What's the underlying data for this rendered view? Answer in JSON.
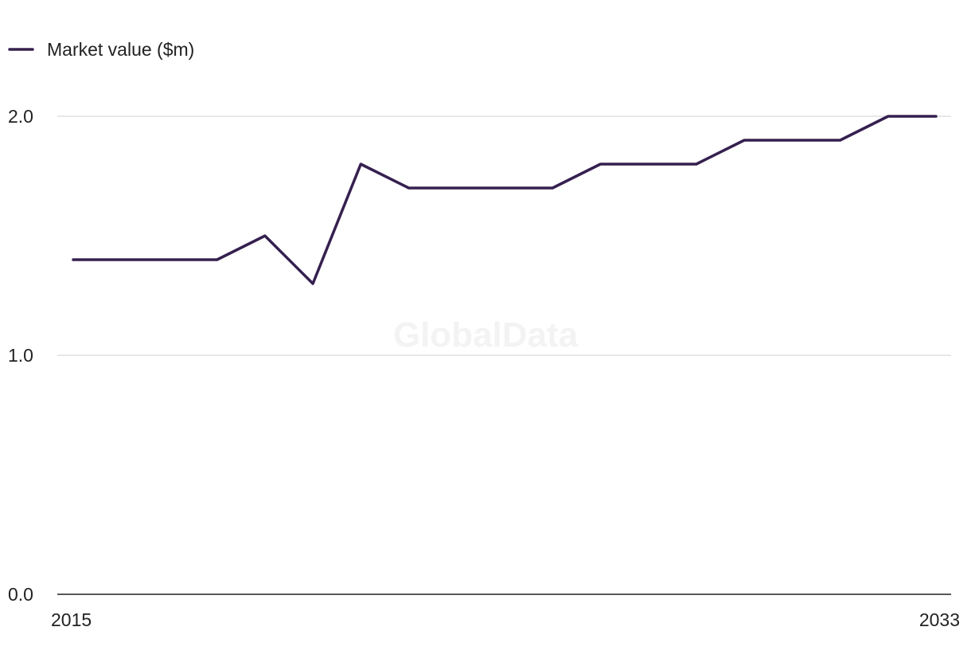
{
  "watermark": "GlobalData",
  "colors": {
    "series": "#35204f",
    "grid": "#d9d9d9",
    "axis": "#222222"
  },
  "chart_data": {
    "type": "line",
    "legend": {
      "position": "top-left"
    },
    "grid": true,
    "x": [
      2015,
      2016,
      2017,
      2018,
      2019,
      2020,
      2021,
      2022,
      2023,
      2024,
      2025,
      2026,
      2027,
      2028,
      2029,
      2030,
      2031,
      2032,
      2033
    ],
    "x_tick_labels": [
      "2015",
      "2033"
    ],
    "ylim": [
      0,
      2.0
    ],
    "y_ticks": [
      0,
      1,
      2
    ],
    "y_tick_labels": [
      "0.0",
      "1.0",
      "2.0"
    ],
    "series": [
      {
        "name": "Market value ($m)",
        "values": [
          1.4,
          1.4,
          1.4,
          1.4,
          1.5,
          1.3,
          1.8,
          1.7,
          1.7,
          1.7,
          1.7,
          1.8,
          1.8,
          1.8,
          1.9,
          1.9,
          1.9,
          2.0,
          2.0
        ]
      }
    ]
  }
}
